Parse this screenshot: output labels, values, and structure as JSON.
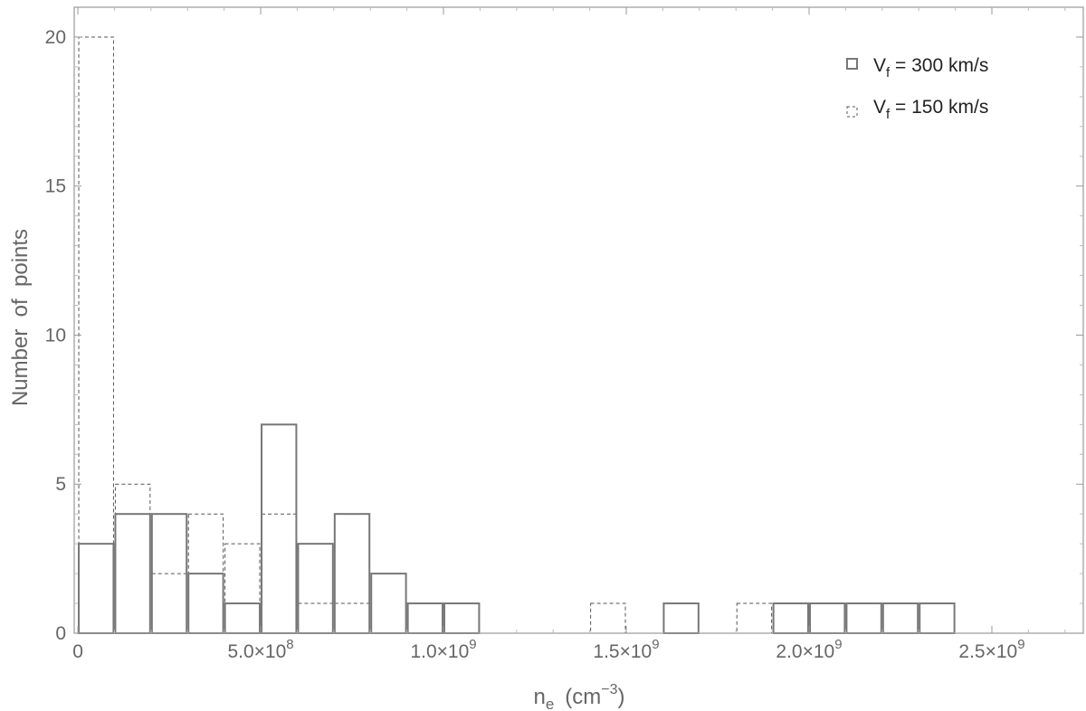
{
  "chart_data": {
    "type": "bar",
    "subtype": "histogram",
    "xlabel": {
      "base": "n",
      "sub": "e",
      "unit_open": "(cm",
      "unit_sup": "−3",
      "unit_close": ")"
    },
    "ylabel": "Number  of  points",
    "xlim": [
      -10000000.0,
      2750000000.0
    ],
    "ylim": [
      0,
      21
    ],
    "grid": false,
    "legend_position": "top-right",
    "x_ticks": [
      {
        "value": 0,
        "label": "0",
        "mantissa": "",
        "exponent": ""
      },
      {
        "value": 500000000,
        "label": "",
        "mantissa": "5.0",
        "exponent": "8"
      },
      {
        "value": 1000000000,
        "label": "",
        "mantissa": "1.0",
        "exponent": "9"
      },
      {
        "value": 1500000000,
        "label": "",
        "mantissa": "1.5",
        "exponent": "9"
      },
      {
        "value": 2000000000,
        "label": "",
        "mantissa": "2.0",
        "exponent": "9"
      },
      {
        "value": 2500000000,
        "label": "",
        "mantissa": "2.5",
        "exponent": "9"
      }
    ],
    "y_ticks": [
      {
        "value": 0,
        "label": "0"
      },
      {
        "value": 5,
        "label": "5"
      },
      {
        "value": 10,
        "label": "10"
      },
      {
        "value": 15,
        "label": "15"
      },
      {
        "value": 20,
        "label": "20"
      }
    ],
    "bin_width": 100000000,
    "series": [
      {
        "name_base": "V",
        "name_sub": "f",
        "name_rest": " = 300 km/s",
        "style": "solid",
        "color": "#777777",
        "bins": [
          {
            "x0": 0,
            "x1": 100000000,
            "count": 3
          },
          {
            "x0": 100000000,
            "x1": 200000000,
            "count": 4
          },
          {
            "x0": 200000000,
            "x1": 300000000,
            "count": 4
          },
          {
            "x0": 300000000,
            "x1": 400000000,
            "count": 2
          },
          {
            "x0": 400000000,
            "x1": 500000000,
            "count": 1
          },
          {
            "x0": 500000000,
            "x1": 600000000,
            "count": 7
          },
          {
            "x0": 600000000,
            "x1": 700000000,
            "count": 3
          },
          {
            "x0": 700000000,
            "x1": 800000000,
            "count": 4
          },
          {
            "x0": 800000000,
            "x1": 900000000,
            "count": 2
          },
          {
            "x0": 900000000,
            "x1": 1000000000,
            "count": 1
          },
          {
            "x0": 1000000000,
            "x1": 1100000000,
            "count": 1
          },
          {
            "x0": 1600000000,
            "x1": 1700000000,
            "count": 1
          },
          {
            "x0": 1900000000,
            "x1": 2000000000,
            "count": 1
          },
          {
            "x0": 2000000000,
            "x1": 2100000000,
            "count": 1
          },
          {
            "x0": 2100000000,
            "x1": 2200000000,
            "count": 1
          },
          {
            "x0": 2200000000,
            "x1": 2300000000,
            "count": 1
          },
          {
            "x0": 2300000000,
            "x1": 2400000000,
            "count": 1
          }
        ]
      },
      {
        "name_base": "V",
        "name_sub": "f",
        "name_rest": " = 150 km/s",
        "style": "dashed",
        "color": "#555555",
        "bins": [
          {
            "x0": 0,
            "x1": 100000000,
            "count": 20
          },
          {
            "x0": 100000000,
            "x1": 200000000,
            "count": 5
          },
          {
            "x0": 200000000,
            "x1": 300000000,
            "count": 2
          },
          {
            "x0": 300000000,
            "x1": 400000000,
            "count": 4
          },
          {
            "x0": 400000000,
            "x1": 500000000,
            "count": 3
          },
          {
            "x0": 500000000,
            "x1": 600000000,
            "count": 4
          },
          {
            "x0": 600000000,
            "x1": 700000000,
            "count": 1
          },
          {
            "x0": 700000000,
            "x1": 800000000,
            "count": 1
          },
          {
            "x0": 1400000000,
            "x1": 1500000000,
            "count": 1
          },
          {
            "x0": 1800000000,
            "x1": 1900000000,
            "count": 1
          },
          {
            "x0": 2000000000,
            "x1": 2100000000,
            "count": 1
          }
        ]
      }
    ]
  }
}
